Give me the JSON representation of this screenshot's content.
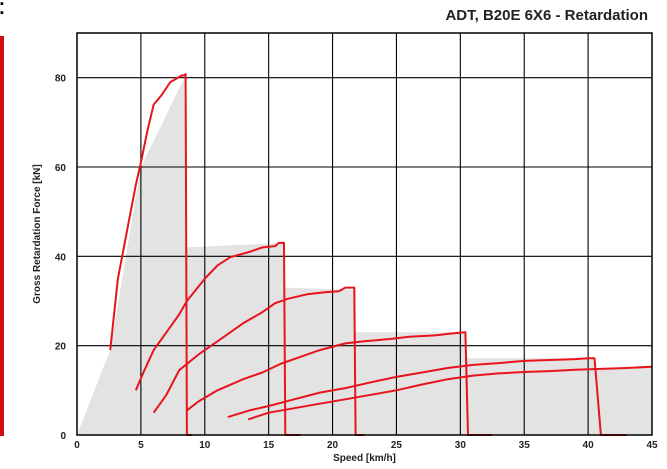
{
  "chart_data": {
    "type": "line",
    "title": "ADT, B20E 6X6 - Retardation",
    "xlabel": "Speed [km/h]",
    "ylabel": "Gross Retardation Force [kN]",
    "xlim": [
      0,
      45
    ],
    "ylim": [
      0,
      90
    ],
    "x_ticks": [
      "0",
      "5",
      "10",
      "15",
      "20",
      "25",
      "30",
      "35",
      "40",
      "45"
    ],
    "y_ticks": [
      "0",
      "20",
      "40",
      "60",
      "80"
    ],
    "x_tick_values": [
      0,
      5,
      10,
      15,
      20,
      25,
      30,
      35,
      40,
      45
    ],
    "y_tick_values": [
      0,
      20,
      40,
      60,
      80
    ],
    "grid": true,
    "colors": {
      "series": "#e8141c",
      "fill": "#e3e3e3",
      "grid": "#000000"
    },
    "envelope": [
      [
        0,
        0
      ],
      [
        2.6,
        19
      ],
      [
        5,
        60
      ],
      [
        8.5,
        80.5
      ],
      [
        8.6,
        42
      ],
      [
        16.2,
        43
      ],
      [
        16.2,
        33
      ],
      [
        21.7,
        32.5
      ],
      [
        21.7,
        23
      ],
      [
        30.4,
        23
      ],
      [
        30.4,
        17.2
      ],
      [
        40.5,
        17.2
      ],
      [
        40.5,
        15
      ],
      [
        45,
        15.3
      ],
      [
        45,
        0
      ]
    ],
    "series": [
      {
        "points": [
          [
            2.6,
            19
          ],
          [
            3.2,
            35
          ],
          [
            4.0,
            47
          ],
          [
            4.6,
            56
          ],
          [
            5.0,
            61
          ],
          [
            5.5,
            68
          ],
          [
            6.0,
            74
          ],
          [
            6.6,
            76
          ],
          [
            7.3,
            79
          ],
          [
            7.9,
            80
          ],
          [
            8.2,
            80.5
          ],
          [
            8.4,
            80.5
          ],
          [
            8.5,
            80.8
          ],
          [
            8.6,
            0
          ],
          [
            9.0,
            0
          ]
        ]
      },
      {
        "points": [
          [
            4.6,
            10
          ],
          [
            5.2,
            14
          ],
          [
            6.0,
            19
          ],
          [
            7.0,
            23
          ],
          [
            8.0,
            27
          ],
          [
            8.6,
            30
          ],
          [
            10.0,
            35
          ],
          [
            11.0,
            38
          ],
          [
            12.0,
            39.8
          ],
          [
            13.5,
            41
          ],
          [
            14.5,
            42
          ],
          [
            15.5,
            42.3
          ],
          [
            15.8,
            43
          ],
          [
            16.2,
            43
          ],
          [
            16.3,
            0
          ],
          [
            17.5,
            0
          ]
        ]
      },
      {
        "points": [
          [
            6.0,
            5
          ],
          [
            7.0,
            9
          ],
          [
            8.0,
            14.5
          ],
          [
            9.5,
            18
          ],
          [
            10.5,
            20
          ],
          [
            12.0,
            23
          ],
          [
            13.0,
            25
          ],
          [
            14.5,
            27.5
          ],
          [
            15.5,
            29.5
          ],
          [
            16.5,
            30.5
          ],
          [
            18.0,
            31.5
          ],
          [
            19.5,
            32
          ],
          [
            20.5,
            32.2
          ],
          [
            21.0,
            33
          ],
          [
            21.7,
            33
          ],
          [
            21.8,
            0
          ],
          [
            22.5,
            0
          ]
        ]
      },
      {
        "points": [
          [
            8.6,
            5.5
          ],
          [
            9.5,
            7.5
          ],
          [
            11.0,
            10
          ],
          [
            13.0,
            12.5
          ],
          [
            14.5,
            14
          ],
          [
            16.0,
            16
          ],
          [
            17.5,
            17.5
          ],
          [
            19.0,
            19
          ],
          [
            21.0,
            20.5
          ],
          [
            22.5,
            21
          ],
          [
            24.5,
            21.5
          ],
          [
            26.0,
            22
          ],
          [
            28.0,
            22.3
          ],
          [
            29.5,
            22.8
          ],
          [
            30.4,
            23
          ],
          [
            30.6,
            0
          ],
          [
            32.5,
            0
          ]
        ]
      },
      {
        "points": [
          [
            11.8,
            4
          ],
          [
            13.5,
            5.5
          ],
          [
            15.0,
            6.5
          ],
          [
            17.0,
            8
          ],
          [
            19.0,
            9.5
          ],
          [
            21.0,
            10.5
          ],
          [
            23.0,
            11.8
          ],
          [
            25.0,
            13
          ],
          [
            27.0,
            14
          ],
          [
            29.0,
            15
          ],
          [
            31.0,
            15.7
          ],
          [
            33.0,
            16.1
          ],
          [
            35.0,
            16.6
          ],
          [
            37.0,
            16.8
          ],
          [
            39.0,
            17
          ],
          [
            40.0,
            17.2
          ],
          [
            40.5,
            17.2
          ],
          [
            41.0,
            0
          ],
          [
            43.0,
            0
          ]
        ]
      },
      {
        "points": [
          [
            13.4,
            3.5
          ],
          [
            15.0,
            5
          ],
          [
            17.0,
            6
          ],
          [
            19.0,
            7
          ],
          [
            21.0,
            8
          ],
          [
            23.0,
            9
          ],
          [
            25.0,
            10
          ],
          [
            27.0,
            11.3
          ],
          [
            29.0,
            12.5
          ],
          [
            31.0,
            13.3
          ],
          [
            33.0,
            13.8
          ],
          [
            35.0,
            14.1
          ],
          [
            37.0,
            14.3
          ],
          [
            39.0,
            14.6
          ],
          [
            41.0,
            14.8
          ],
          [
            43.0,
            15
          ],
          [
            45.0,
            15.3
          ]
        ]
      }
    ]
  }
}
